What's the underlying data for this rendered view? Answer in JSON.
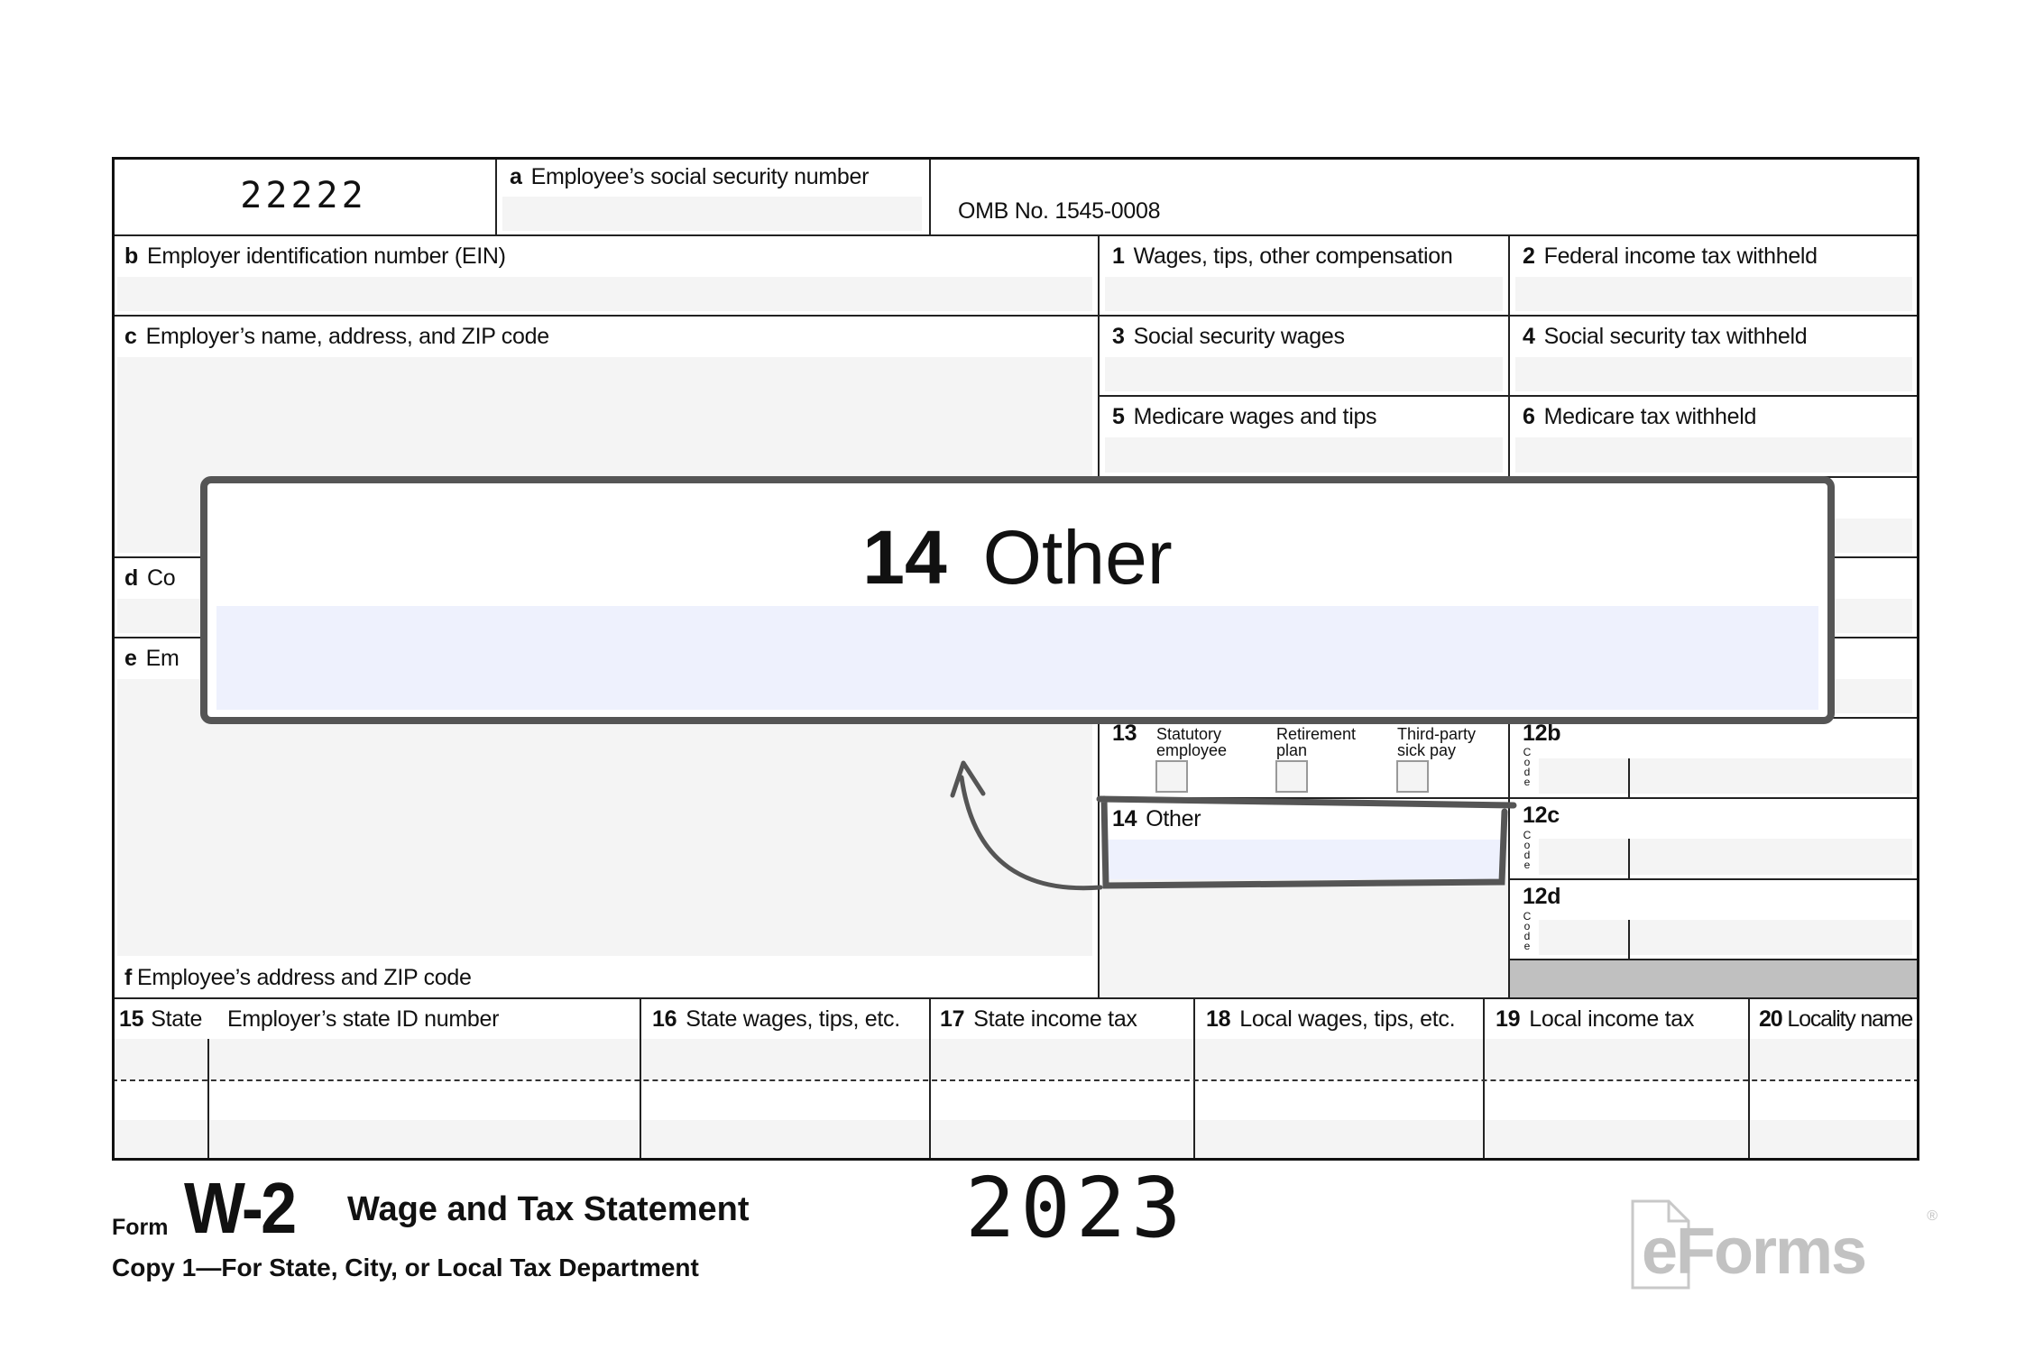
{
  "form": {
    "control_code": "22222",
    "box_a": {
      "letter": "a",
      "label": "Employee’s social security number"
    },
    "omb": "OMB No. 1545-0008",
    "box_b": {
      "letter": "b",
      "label": "Employer identification number (EIN)"
    },
    "box_c": {
      "letter": "c",
      "label": "Employer’s name, address, and ZIP code"
    },
    "box_d": {
      "letter": "d",
      "label": "Co"
    },
    "box_e": {
      "letter": "e",
      "label": "Em"
    },
    "box_f": {
      "letter": "f",
      "label": "Employee’s address and ZIP code"
    },
    "box_1": {
      "num": "1",
      "label": "Wages, tips, other compensation"
    },
    "box_2": {
      "num": "2",
      "label": "Federal income tax withheld"
    },
    "box_3": {
      "num": "3",
      "label": "Social security wages"
    },
    "box_4": {
      "num": "4",
      "label": "Social security tax withheld"
    },
    "box_5": {
      "num": "5",
      "label": "Medicare wages and tips"
    },
    "box_6": {
      "num": "6",
      "label": "Medicare tax withheld"
    },
    "box_13": {
      "num": "13",
      "opt1": "Statutory employee",
      "opt2": "Retirement plan",
      "opt3": "Third-party sick pay"
    },
    "box_14": {
      "num": "14",
      "label": "Other"
    },
    "box_12b": {
      "num": "12b",
      "code": "Code"
    },
    "box_12c": {
      "num": "12c",
      "code": "Code"
    },
    "box_12d": {
      "num": "12d",
      "code": "Code"
    },
    "box_15": {
      "num": "15",
      "label": "State",
      "label2": "Employer’s state ID number"
    },
    "box_16": {
      "num": "16",
      "label": "State wages, tips, etc."
    },
    "box_17": {
      "num": "17",
      "label": "State income tax"
    },
    "box_18": {
      "num": "18",
      "label": "Local wages, tips, etc."
    },
    "box_19": {
      "num": "19",
      "label": "Local income tax"
    },
    "box_20": {
      "num": "20",
      "label": "Locality name"
    }
  },
  "footer": {
    "form_word": "Form",
    "form_name": "W-2",
    "title": "Wage and Tax Statement",
    "copy": "Copy 1—For State, City, or Local Tax Department",
    "year": "2023",
    "logo": "eForms"
  },
  "callout": {
    "num": "14",
    "label": "Other"
  },
  "colors": {
    "highlight_fill": "#eef1fd",
    "callout_border": "#555555",
    "field_gray": "#f4f4f4",
    "shaded": "#c0c0c0"
  }
}
